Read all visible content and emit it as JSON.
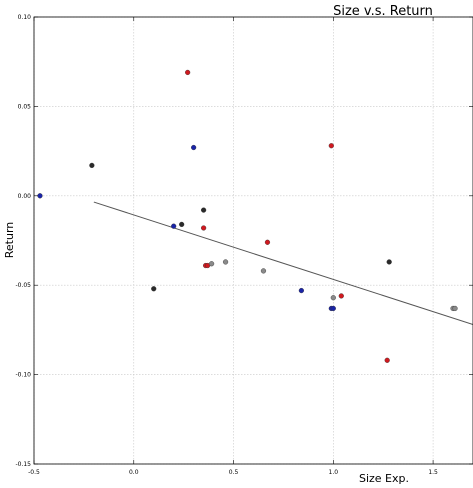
{
  "chart_data": {
    "type": "scatter",
    "title": "Size v.s. Return",
    "xlabel": "Size Exp.",
    "ylabel": "Return",
    "xlim": [
      -0.5,
      1.7
    ],
    "ylim": [
      -0.15,
      0.1
    ],
    "xticks": [
      -0.5,
      0.0,
      0.5,
      1.0,
      1.5
    ],
    "xtick_labels": [
      "-0.5",
      "0.0",
      "0.5",
      "1.0",
      "1.5"
    ],
    "yticks": [
      0.1,
      0.05,
      0.0,
      -0.05,
      -0.1,
      -0.15
    ],
    "ytick_labels": [
      "0.10",
      "0.05",
      "0.00",
      "-0.05",
      "-0.10",
      "-0.15"
    ],
    "grid": true,
    "trendline": {
      "x": [
        -0.2,
        1.7
      ],
      "y": [
        -0.0035,
        -0.072
      ]
    },
    "colors": {
      "red": "#d0191f",
      "blue": "#1a24a8",
      "black": "#2a2a2a",
      "gray": "#8a8a8a",
      "line": "#555555"
    },
    "points": [
      {
        "x": -0.47,
        "y": -0.0,
        "color": "blue"
      },
      {
        "x": -0.21,
        "y": 0.017,
        "color": "black"
      },
      {
        "x": 0.1,
        "y": -0.052,
        "color": "black"
      },
      {
        "x": 0.2,
        "y": -0.017,
        "color": "blue"
      },
      {
        "x": 0.24,
        "y": -0.016,
        "color": "black"
      },
      {
        "x": 0.27,
        "y": 0.069,
        "color": "red"
      },
      {
        "x": 0.3,
        "y": 0.027,
        "color": "blue"
      },
      {
        "x": 0.35,
        "y": -0.008,
        "color": "black"
      },
      {
        "x": 0.35,
        "y": -0.018,
        "color": "red"
      },
      {
        "x": 0.36,
        "y": -0.039,
        "color": "red"
      },
      {
        "x": 0.37,
        "y": -0.039,
        "color": "red"
      },
      {
        "x": 0.39,
        "y": -0.038,
        "color": "gray"
      },
      {
        "x": 0.46,
        "y": -0.037,
        "color": "gray"
      },
      {
        "x": 0.65,
        "y": -0.042,
        "color": "gray"
      },
      {
        "x": 0.67,
        "y": -0.026,
        "color": "red"
      },
      {
        "x": 0.84,
        "y": -0.053,
        "color": "blue"
      },
      {
        "x": 0.99,
        "y": 0.028,
        "color": "red"
      },
      {
        "x": 0.99,
        "y": -0.063,
        "color": "blue"
      },
      {
        "x": 1.0,
        "y": -0.063,
        "color": "blue"
      },
      {
        "x": 1.0,
        "y": -0.057,
        "color": "gray"
      },
      {
        "x": 1.04,
        "y": -0.056,
        "color": "red"
      },
      {
        "x": 1.27,
        "y": -0.092,
        "color": "red"
      },
      {
        "x": 1.28,
        "y": -0.037,
        "color": "black"
      },
      {
        "x": 1.6,
        "y": -0.063,
        "color": "gray"
      },
      {
        "x": 1.61,
        "y": -0.063,
        "color": "gray"
      }
    ]
  }
}
